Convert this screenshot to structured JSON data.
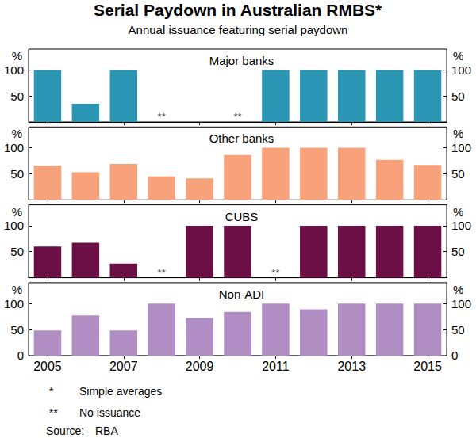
{
  "title": "Serial Paydown in Australian RMBS*",
  "subtitle": "Annual issuance featuring serial paydown",
  "notes": [
    {
      "symbol": "*",
      "text": "Simple averages"
    },
    {
      "symbol": "**",
      "text": "No issuance"
    }
  ],
  "source": {
    "label": "Source:",
    "text": "RBA"
  },
  "chart_data": [
    {
      "type": "bar",
      "title": "Major banks",
      "x": [
        2005,
        2006,
        2007,
        2008,
        2009,
        2010,
        2011,
        2012,
        2013,
        2014,
        2015
      ],
      "values": [
        100,
        35,
        100,
        null,
        0,
        null,
        100,
        100,
        100,
        100,
        100
      ],
      "color": "#2a96b4",
      "xlim": [
        2004.5,
        2015.5
      ],
      "xticks": [
        2005,
        2007,
        2009,
        2011,
        2013,
        2015
      ],
      "ylim": [
        0,
        140
      ],
      "yticks": [
        50,
        100
      ],
      "ylabel": "%",
      "grid": false,
      "tick_labels": "y",
      "annotations": [
        {
          "x": 2008,
          "text": "**"
        },
        {
          "x": 2010,
          "text": "**"
        }
      ]
    },
    {
      "type": "bar",
      "title": "Other banks",
      "x": [
        2005,
        2006,
        2007,
        2008,
        2009,
        2010,
        2011,
        2012,
        2013,
        2014,
        2015
      ],
      "values": [
        66,
        53,
        69,
        45,
        41,
        86,
        100,
        100,
        100,
        77,
        67
      ],
      "color": "#f7a27a",
      "xlim": [
        2004.5,
        2015.5
      ],
      "xticks": [
        2005,
        2007,
        2009,
        2011,
        2013,
        2015
      ],
      "ylim": [
        0,
        140
      ],
      "yticks": [
        50,
        100
      ],
      "ylabel": "%",
      "grid": false,
      "tick_labels": "y",
      "annotations": []
    },
    {
      "type": "bar",
      "title": "CUBS",
      "x": [
        2005,
        2006,
        2007,
        2008,
        2009,
        2010,
        2011,
        2012,
        2013,
        2014,
        2015
      ],
      "values": [
        60,
        67,
        27,
        null,
        100,
        100,
        null,
        100,
        100,
        100,
        100
      ],
      "color": "#6b0f45",
      "xlim": [
        2004.5,
        2015.5
      ],
      "xticks": [
        2005,
        2007,
        2009,
        2011,
        2013,
        2015
      ],
      "ylim": [
        0,
        140
      ],
      "yticks": [
        50,
        100
      ],
      "ylabel": "%",
      "grid": false,
      "tick_labels": "y",
      "annotations": [
        {
          "x": 2008,
          "text": "**"
        },
        {
          "x": 2011,
          "text": "**"
        }
      ]
    },
    {
      "type": "bar",
      "title": "Non-ADI",
      "x": [
        2005,
        2006,
        2007,
        2008,
        2009,
        2010,
        2011,
        2012,
        2013,
        2014,
        2015
      ],
      "values": [
        48,
        77,
        48,
        100,
        72,
        84,
        100,
        89,
        100,
        100,
        100
      ],
      "color": "#b08ec4",
      "xlim": [
        2004.5,
        2015.5
      ],
      "xticks": [
        2005,
        2007,
        2009,
        2011,
        2013,
        2015
      ],
      "ylim": [
        0,
        140
      ],
      "yticks": [
        0,
        50,
        100
      ],
      "ylabel": "%",
      "grid": false,
      "tick_labels": true,
      "annotations": []
    }
  ]
}
